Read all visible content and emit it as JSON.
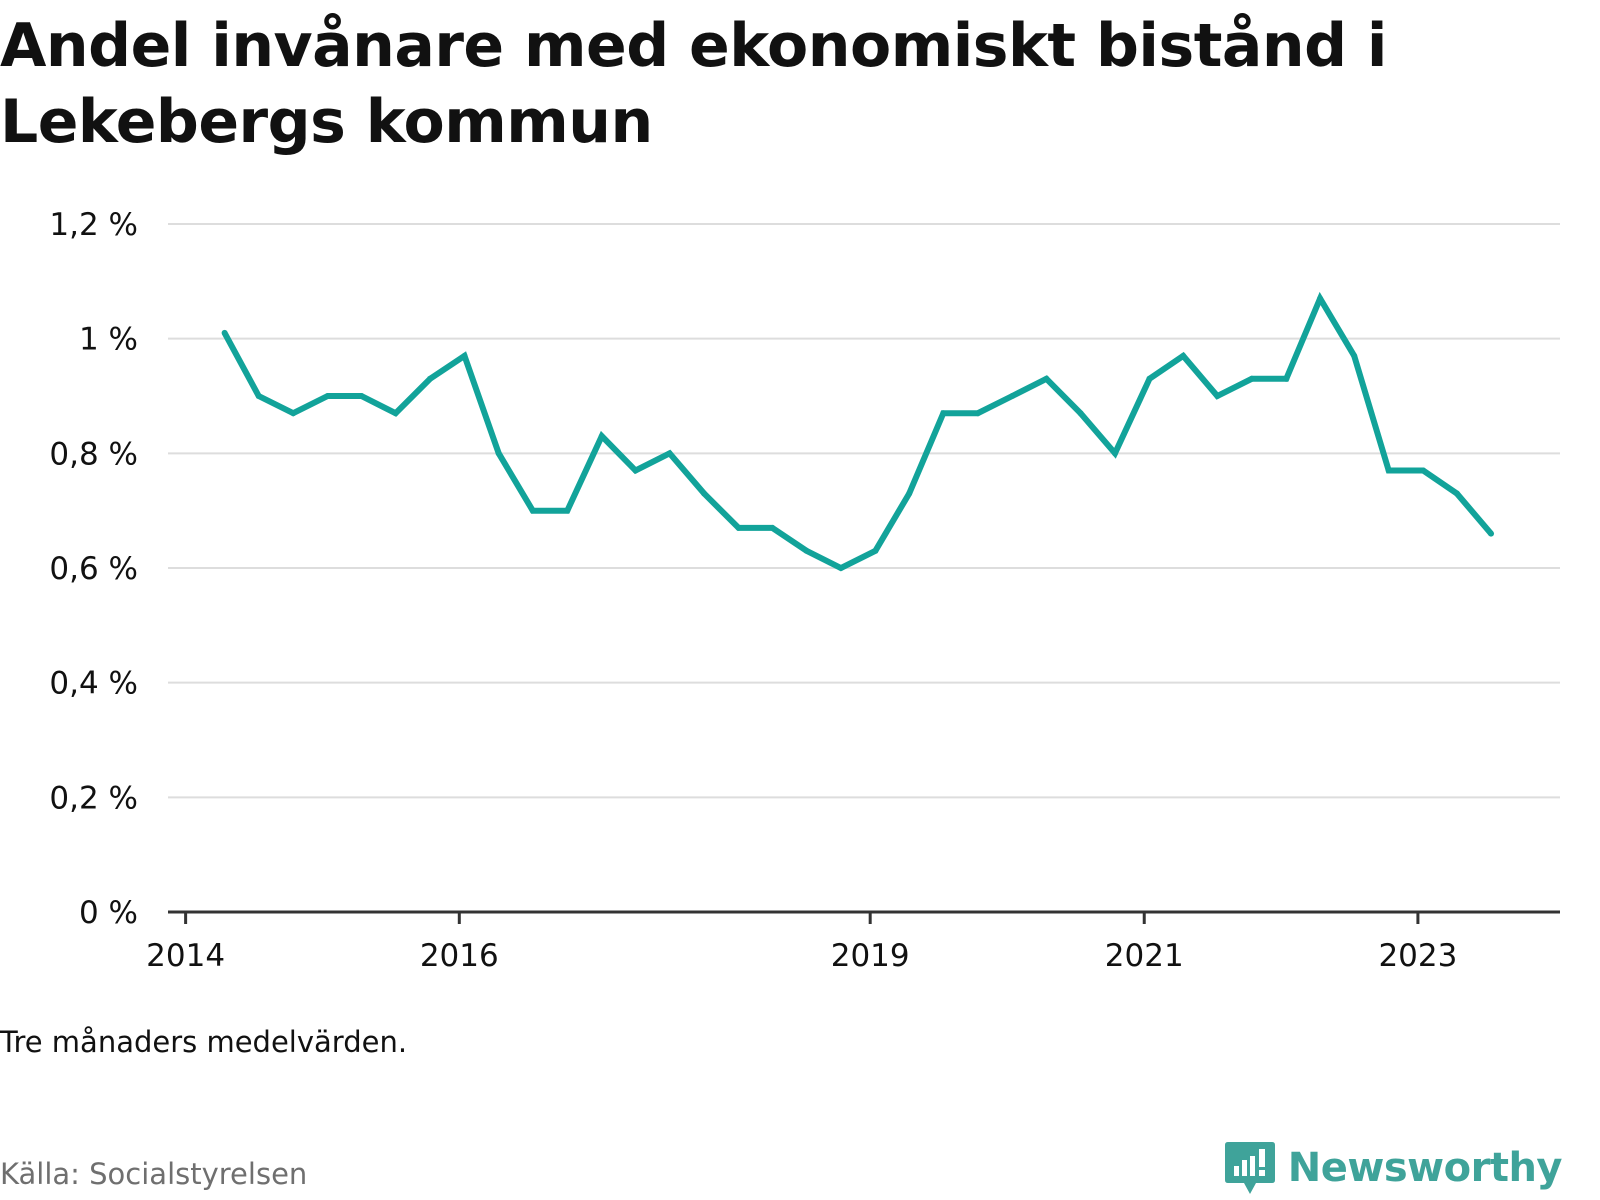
{
  "title": "Andel invånare med ekonomiskt bistånd i Lekebergs kommun",
  "note": "Tre månaders medelvärden.",
  "source": "Källa: Socialstyrelsen",
  "brand": {
    "name": "Newsworthy",
    "icon": "newsworthy-logo-icon"
  },
  "colors": {
    "line": "#12a39a",
    "grid": "#dddddd",
    "axis": "#333333",
    "text": "#111111",
    "source": "#6f6f6f",
    "brand": "#3fa39a"
  },
  "chart_data": {
    "type": "line",
    "title": "Andel invånare med ekonomiskt bistånd i Lekebergs kommun",
    "xlabel": "",
    "ylabel": "",
    "ylim": [
      0,
      1.2
    ],
    "xlim": [
      "2013-11-15",
      "2024-01-15"
    ],
    "y_ticks": [
      0,
      0.2,
      0.4,
      0.6,
      0.8,
      1.0,
      1.2
    ],
    "y_tick_labels": [
      "0 %",
      "0,2 %",
      "0,4 %",
      "0,6 %",
      "0,8 %",
      "1 %",
      "1,2 %"
    ],
    "x_ticks": [
      "2014-01-01",
      "2016-01-01",
      "2019-01-01",
      "2021-01-01",
      "2023-01-01"
    ],
    "x_tick_labels": [
      "2014",
      "2016",
      "2019",
      "2021",
      "2023"
    ],
    "grid": true,
    "legend": "none",
    "series": [
      {
        "x": [
          "2014-04-15",
          "2014-07-15",
          "2014-10-15",
          "2015-01-15",
          "2015-04-15",
          "2015-07-15",
          "2015-10-15",
          "2016-01-15",
          "2016-04-15",
          "2016-07-15",
          "2016-10-15",
          "2017-01-15",
          "2017-04-15",
          "2017-07-15",
          "2017-10-15",
          "2018-01-15",
          "2018-04-15",
          "2018-07-15",
          "2018-10-15",
          "2019-01-15",
          "2019-04-15",
          "2019-07-15",
          "2019-10-15",
          "2020-01-15",
          "2020-04-15",
          "2020-07-15",
          "2020-10-15",
          "2021-01-15",
          "2021-04-15",
          "2021-07-15",
          "2021-10-15",
          "2022-01-15",
          "2022-04-15",
          "2022-07-15",
          "2022-10-15",
          "2023-01-15",
          "2023-04-15",
          "2023-07-15"
        ],
        "values": [
          1.01,
          0.9,
          0.87,
          0.9,
          0.9,
          0.87,
          0.93,
          0.97,
          0.8,
          0.7,
          0.7,
          0.83,
          0.77,
          0.8,
          0.73,
          0.67,
          0.67,
          0.63,
          0.6,
          0.63,
          0.73,
          0.87,
          0.87,
          0.9,
          0.93,
          0.87,
          0.8,
          0.93,
          0.97,
          0.9,
          0.93,
          0.93,
          1.07,
          0.97,
          0.77,
          0.77,
          0.73,
          0.66
        ]
      }
    ]
  }
}
